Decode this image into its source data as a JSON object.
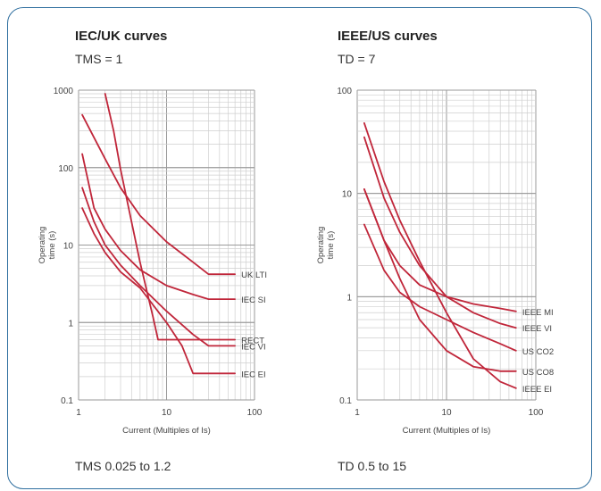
{
  "chart_data": [
    {
      "type": "line",
      "title": "IEC/UK curves",
      "subtitle": "TMS = 1",
      "footer": "TMS 0.025 to 1.2",
      "xlabel": "Current (Multiples of Is)",
      "ylabel": "Operating time (s)",
      "xscale": "log",
      "yscale": "log",
      "xlim": [
        1,
        100
      ],
      "ylim": [
        0.1,
        1000
      ],
      "xticks": [
        "1",
        "10",
        "100"
      ],
      "yticks": [
        "0.1",
        "1",
        "10",
        "100",
        "1000"
      ],
      "grid": true,
      "line_color": "#c0263a",
      "series": [
        {
          "name": "UK LTI",
          "points": [
            [
              1.1,
              480
            ],
            [
              2,
              130
            ],
            [
              3,
              55
            ],
            [
              5,
              24
            ],
            [
              10,
              11
            ],
            [
              20,
              6
            ],
            [
              30,
              4.2
            ],
            [
              60,
              4.2
            ]
          ]
        },
        {
          "name": "IEC SI",
          "points": [
            [
              1.1,
              150
            ],
            [
              1.5,
              30
            ],
            [
              2,
              16
            ],
            [
              3,
              8.5
            ],
            [
              5,
              4.8
            ],
            [
              10,
              3
            ],
            [
              20,
              2.3
            ],
            [
              30,
              2
            ],
            [
              60,
              2
            ]
          ]
        },
        {
          "name": "RECT",
          "points": [
            [
              2,
              900
            ],
            [
              2.5,
              300
            ],
            [
              3,
              95
            ],
            [
              4,
              20
            ],
            [
              5,
              6
            ],
            [
              6,
              2.5
            ],
            [
              7,
              1.2
            ],
            [
              8,
              0.6
            ],
            [
              60,
              0.6
            ]
          ]
        },
        {
          "name": "IEC VI",
          "points": [
            [
              1.1,
              55
            ],
            [
              1.5,
              20
            ],
            [
              2,
              10
            ],
            [
              3,
              5.5
            ],
            [
              5,
              3
            ],
            [
              10,
              1.4
            ],
            [
              20,
              0.7
            ],
            [
              30,
              0.5
            ],
            [
              60,
              0.5
            ]
          ]
        },
        {
          "name": "IEC EI",
          "points": [
            [
              1.1,
              30
            ],
            [
              1.5,
              14
            ],
            [
              2,
              8
            ],
            [
              3,
              4.5
            ],
            [
              5,
              2.8
            ],
            [
              10,
              1
            ],
            [
              15,
              0.5
            ],
            [
              20,
              0.22
            ],
            [
              60,
              0.22
            ]
          ]
        }
      ]
    },
    {
      "type": "line",
      "title": "IEEE/US curves",
      "subtitle": "TD = 7",
      "footer": "TD 0.5 to 15",
      "xlabel": "Current (Multiples of Is)",
      "ylabel": "Operating time (s)",
      "xscale": "log",
      "yscale": "log",
      "xlim": [
        1,
        100
      ],
      "ylim": [
        0.1,
        100
      ],
      "xticks": [
        "1",
        "10",
        "100"
      ],
      "yticks": [
        "0.1",
        "1",
        "10",
        "100"
      ],
      "grid": true,
      "line_color": "#c0263a",
      "series": [
        {
          "name": "IEEE MI",
          "points": [
            [
              1.2,
              11
            ],
            [
              2,
              3.5
            ],
            [
              3,
              2
            ],
            [
              5,
              1.3
            ],
            [
              10,
              1
            ],
            [
              20,
              0.85
            ],
            [
              40,
              0.77
            ],
            [
              60,
              0.72
            ]
          ]
        },
        {
          "name": "IEEE VI",
          "points": [
            [
              1.2,
              35
            ],
            [
              2,
              9
            ],
            [
              3,
              4.2
            ],
            [
              5,
              2
            ],
            [
              10,
              1
            ],
            [
              20,
              0.7
            ],
            [
              40,
              0.55
            ],
            [
              60,
              0.5
            ]
          ]
        },
        {
          "name": "US CO2",
          "points": [
            [
              1.2,
              5
            ],
            [
              2,
              1.8
            ],
            [
              3,
              1.1
            ],
            [
              5,
              0.8
            ],
            [
              10,
              0.6
            ],
            [
              20,
              0.45
            ],
            [
              40,
              0.35
            ],
            [
              60,
              0.3
            ]
          ]
        },
        {
          "name": "US CO8",
          "points": [
            [
              1.2,
              11
            ],
            [
              2,
              3.5
            ],
            [
              3,
              1.5
            ],
            [
              5,
              0.6
            ],
            [
              10,
              0.3
            ],
            [
              20,
              0.21
            ],
            [
              40,
              0.19
            ],
            [
              60,
              0.19
            ]
          ]
        },
        {
          "name": "IEEE EI",
          "points": [
            [
              1.2,
              48
            ],
            [
              2,
              13
            ],
            [
              3,
              5.5
            ],
            [
              5,
              2.2
            ],
            [
              10,
              0.7
            ],
            [
              20,
              0.25
            ],
            [
              40,
              0.15
            ],
            [
              60,
              0.13
            ]
          ]
        }
      ]
    }
  ]
}
